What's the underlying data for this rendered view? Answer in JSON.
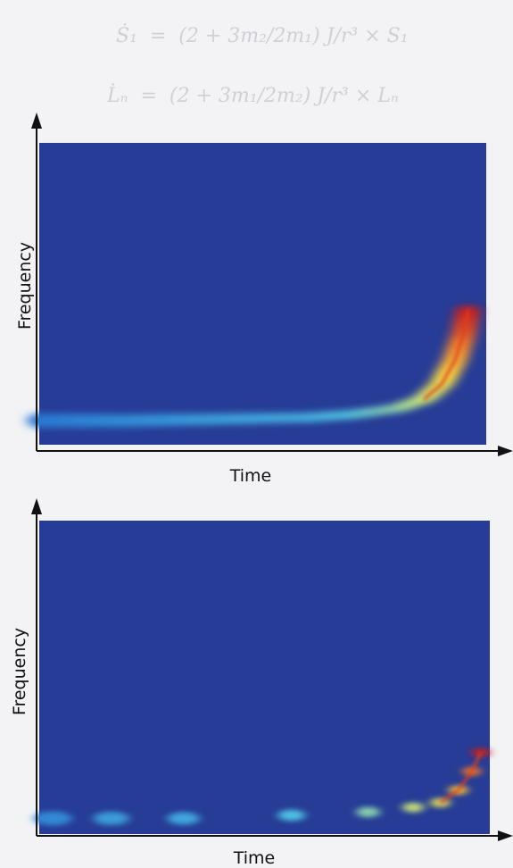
{
  "chart_data": [
    {
      "type": "heatmap",
      "title": "",
      "xlabel": "Time",
      "ylabel": "Frequency",
      "colormap": "jet",
      "description_values": {
        "background_color": "#263c96",
        "series": [
          {
            "t": 0.0,
            "f": 0.08,
            "intensity": 0.25
          },
          {
            "t": 0.2,
            "f": 0.08,
            "intensity": 0.3
          },
          {
            "t": 0.4,
            "f": 0.085,
            "intensity": 0.35
          },
          {
            "t": 0.6,
            "f": 0.09,
            "intensity": 0.4
          },
          {
            "t": 0.7,
            "f": 0.1,
            "intensity": 0.45
          },
          {
            "t": 0.8,
            "f": 0.12,
            "intensity": 0.55
          },
          {
            "t": 0.86,
            "f": 0.15,
            "intensity": 0.65
          },
          {
            "t": 0.9,
            "f": 0.2,
            "intensity": 0.75
          },
          {
            "t": 0.93,
            "f": 0.28,
            "intensity": 0.85
          },
          {
            "t": 0.95,
            "f": 0.37,
            "intensity": 0.95
          },
          {
            "t": 0.96,
            "f": 0.45,
            "intensity": 1.0
          }
        ]
      }
    },
    {
      "type": "heatmap",
      "title": "",
      "xlabel": "Time",
      "ylabel": "Frequency",
      "colormap": "jet",
      "description_values": {
        "background_color": "#263c96",
        "series": [
          {
            "t": 0.03,
            "f": 0.05,
            "intensity": 0.3
          },
          {
            "t": 0.16,
            "f": 0.05,
            "intensity": 0.35
          },
          {
            "t": 0.32,
            "f": 0.05,
            "intensity": 0.38
          },
          {
            "t": 0.56,
            "f": 0.06,
            "intensity": 0.45
          },
          {
            "t": 0.73,
            "f": 0.07,
            "intensity": 0.55
          },
          {
            "t": 0.83,
            "f": 0.085,
            "intensity": 0.65
          },
          {
            "t": 0.89,
            "f": 0.1,
            "intensity": 0.72
          },
          {
            "t": 0.93,
            "f": 0.14,
            "intensity": 0.82
          },
          {
            "t": 0.96,
            "f": 0.2,
            "intensity": 0.92
          },
          {
            "t": 0.98,
            "f": 0.26,
            "intensity": 1.0
          }
        ]
      }
    }
  ]
}
